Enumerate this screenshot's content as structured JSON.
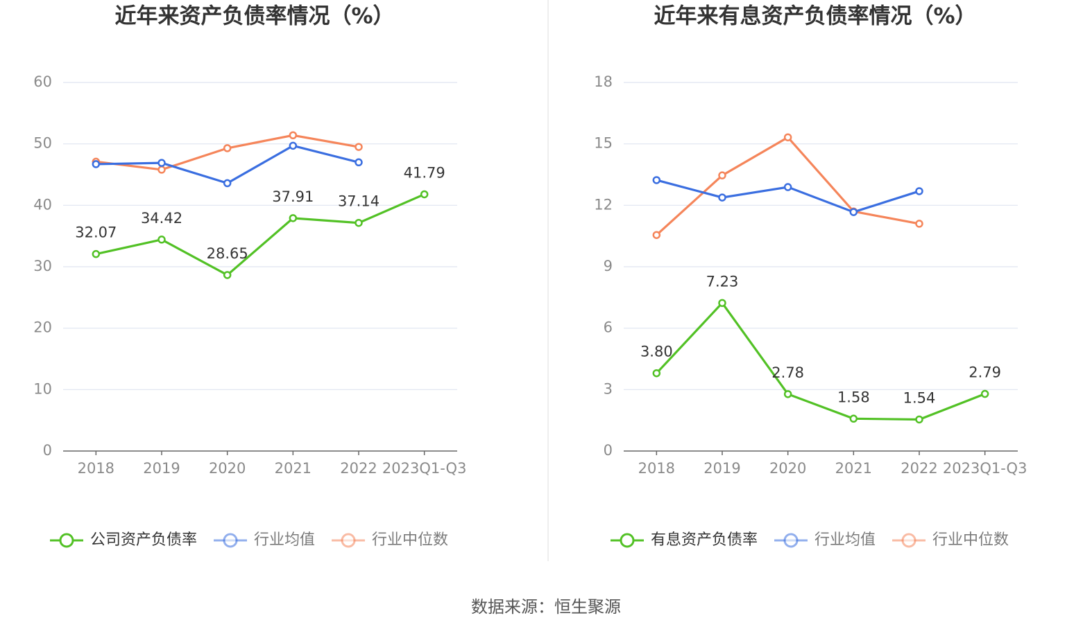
{
  "chart_data": [
    {
      "type": "line",
      "title": "近年来资产负债率情况（%）",
      "categories": [
        "2018",
        "2019",
        "2020",
        "2021",
        "2022",
        "2023Q1-Q3"
      ],
      "ylim": [
        0,
        60
      ],
      "yticks": [
        0,
        10,
        20,
        30,
        40,
        50,
        60
      ],
      "grid": true,
      "legend": "bottom",
      "series": [
        {
          "name": "公司资产负债率",
          "color": "#52c125",
          "values": [
            32.07,
            34.42,
            28.65,
            37.91,
            37.14,
            41.79
          ]
        },
        {
          "name": "行业均值",
          "color": "#3a6ee0",
          "values": [
            46.7,
            46.9,
            43.6,
            49.7,
            47.0,
            null
          ]
        },
        {
          "name": "行业中位数",
          "color": "#f5855a",
          "values": [
            47.1,
            45.8,
            49.3,
            51.4,
            49.5,
            null
          ]
        }
      ]
    },
    {
      "type": "line",
      "title": "近年来有息资产负债率情况（%）",
      "categories": [
        "2018",
        "2019",
        "2020",
        "2021",
        "2022",
        "2023Q1-Q3"
      ],
      "ylim": [
        0,
        18
      ],
      "yticks": [
        0,
        3,
        6,
        9,
        12,
        15,
        18
      ],
      "grid": true,
      "legend": "bottom",
      "series": [
        {
          "name": "有息资产负债率",
          "color": "#52c125",
          "values": [
            3.8,
            7.23,
            2.78,
            1.58,
            1.54,
            2.79
          ],
          "value_labels": [
            "3.80",
            "7.23",
            "2.78",
            "1.58",
            "1.54",
            "2.79"
          ]
        },
        {
          "name": "行业均值",
          "color": "#3a6ee0",
          "values": [
            13.23,
            12.38,
            12.89,
            11.67,
            12.69,
            null
          ]
        },
        {
          "name": "行业中位数",
          "color": "#f5855a",
          "values": [
            10.55,
            13.46,
            15.32,
            11.7,
            11.1,
            null
          ]
        }
      ]
    }
  ],
  "source": "数据来源：恒生聚源"
}
